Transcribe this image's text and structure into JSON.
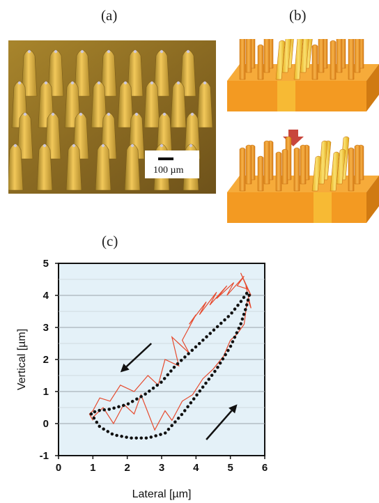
{
  "panels": {
    "a": {
      "label": "(a)",
      "scale_bar": "100 µm"
    },
    "b": {
      "label": "(b)"
    },
    "c": {
      "label": "(c)"
    }
  },
  "colors": {
    "micrograph_bg": "#8a6a22",
    "cilia_orange": "#f3a02a",
    "cilia_highlight": "#f8d040",
    "arrow_red": "#c8463c",
    "plot_bg": "#e4f1f8",
    "measured_line": "#e64a2e",
    "fit_dots": "#111111"
  },
  "chart_data": {
    "type": "line",
    "xlabel": "Lateral [µm]",
    "ylabel": "Vertical  [µm]",
    "xlim": [
      0,
      6
    ],
    "ylim": [
      -1,
      5
    ],
    "xticks": [
      0,
      1,
      2,
      3,
      4,
      5,
      6
    ],
    "yticks": [
      -1,
      0,
      1,
      2,
      3,
      4,
      5
    ],
    "grid": "horizontal",
    "series": [
      {
        "style": "solid-thin",
        "color": "#e64a2e",
        "x": [
          1.0,
          1.3,
          1.6,
          1.9,
          2.2,
          2.4,
          2.8,
          3.1,
          3.3,
          3.6,
          3.9,
          4.2,
          4.5,
          4.8,
          5.0,
          5.2,
          5.4,
          5.5,
          5.6,
          5.45,
          5.6,
          5.3,
          5.5,
          5.2,
          5.4,
          4.9,
          5.1,
          4.6,
          4.9,
          4.4,
          4.6,
          4.1,
          4.3,
          3.8,
          4.0,
          3.6,
          3.8,
          3.3,
          3.5,
          3.1,
          2.9,
          2.6,
          2.2,
          1.8,
          1.5,
          1.2,
          1.0,
          0.9,
          1.0
        ],
        "y": [
          0.2,
          0.5,
          0.0,
          0.6,
          0.3,
          0.9,
          -0.2,
          0.4,
          0.1,
          0.7,
          0.9,
          1.4,
          1.7,
          2.1,
          2.6,
          2.8,
          3.1,
          3.9,
          3.6,
          4.3,
          4.0,
          4.7,
          4.2,
          4.3,
          4.6,
          4.0,
          4.4,
          3.9,
          4.3,
          3.7,
          4.1,
          3.4,
          3.8,
          3.1,
          3.4,
          2.6,
          2.2,
          2.7,
          1.8,
          2.0,
          1.2,
          1.5,
          1.0,
          1.2,
          0.7,
          0.8,
          0.4,
          0.3,
          0.1
        ]
      },
      {
        "style": "dotted-thick",
        "color": "#111111",
        "x": [
          0.95,
          1.2,
          1.6,
          2.1,
          2.6,
          3.1,
          3.6,
          4.1,
          4.6,
          5.0,
          5.3,
          5.45,
          5.55,
          5.5,
          5.3,
          5.0,
          4.6,
          4.2,
          3.8,
          3.4,
          3.0,
          2.5,
          2.0,
          1.5,
          1.1,
          0.95
        ],
        "y": [
          0.3,
          -0.1,
          -0.35,
          -0.45,
          -0.45,
          -0.3,
          0.3,
          1.0,
          1.7,
          2.4,
          3.1,
          3.6,
          4.0,
          4.1,
          3.8,
          3.4,
          3.0,
          2.6,
          2.2,
          1.8,
          1.3,
          0.9,
          0.6,
          0.45,
          0.4,
          0.3
        ]
      }
    ],
    "annotations": [
      {
        "type": "arrow",
        "from": [
          2.7,
          2.5
        ],
        "to": [
          1.8,
          1.6
        ]
      },
      {
        "type": "arrow",
        "from": [
          4.3,
          -0.5
        ],
        "to": [
          5.2,
          0.6
        ]
      }
    ]
  }
}
